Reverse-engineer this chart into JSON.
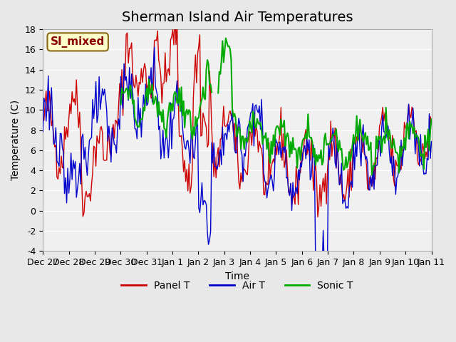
{
  "title": "Sherman Island Air Temperatures",
  "xlabel": "Time",
  "ylabel": "Temperature (C)",
  "ylim": [
    -4,
    18
  ],
  "yticks": [
    -4,
    -2,
    0,
    2,
    4,
    6,
    8,
    10,
    12,
    14,
    16,
    18
  ],
  "xtick_labels": [
    "Dec 27",
    "Dec 28",
    "Dec 29",
    "Dec 30",
    "Dec 31",
    "Jan 1",
    "Jan 2",
    "Jan 3",
    "Jan 4",
    "Jan 5",
    "Jan 6",
    "Jan 7",
    "Jan 8",
    "Jan 9",
    "Jan 10",
    "Jan 11"
  ],
  "legend_labels": [
    "Panel T",
    "Air T",
    "Sonic T"
  ],
  "legend_colors": [
    "#cc0000",
    "#0000cc",
    "#00aa00"
  ],
  "line_colors": [
    "#cc0000",
    "#0000cc",
    "#00aa00"
  ],
  "bg_color": "#e8e8e8",
  "plot_bg_color": "#f0f0f0",
  "annotation_text": "SI_mixed",
  "annotation_color": "#8b0000",
  "annotation_bg": "#ffffcc",
  "title_fontsize": 14,
  "axis_fontsize": 10,
  "tick_fontsize": 9
}
